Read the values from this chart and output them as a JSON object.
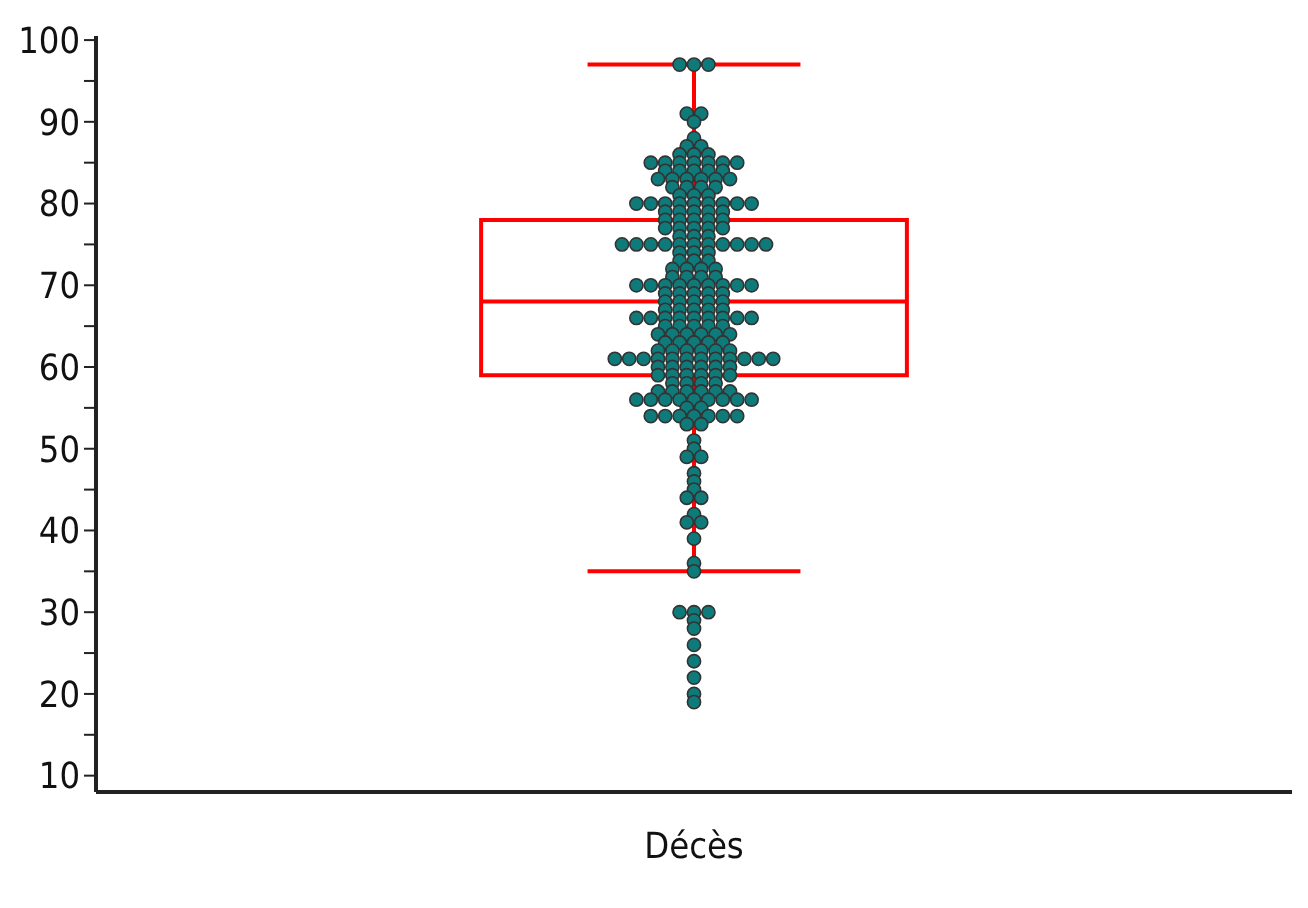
{
  "chart_data": {
    "type": "box",
    "categories": [
      "Décès"
    ],
    "boxes": [
      {
        "low": 35,
        "q1": 59,
        "median": 68,
        "q3": 78,
        "high": 97
      }
    ],
    "color": "#ff0000",
    "ylim": [
      8,
      100.5
    ],
    "yticks": [
      10,
      {
        "value": 15,
        "label": null
      },
      20,
      {
        "value": 25,
        "label": null
      },
      30,
      {
        "value": 35,
        "label": null
      },
      40,
      {
        "value": 45,
        "label": null
      },
      50,
      {
        "value": 55,
        "label": null
      },
      60,
      {
        "value": 65,
        "label": null
      },
      70,
      {
        "value": 75,
        "label": null
      },
      80,
      {
        "value": 85,
        "label": null
      },
      90,
      {
        "value": 95,
        "label": null
      },
      100
    ],
    "series": [
      {
        "type": "scatter",
        "color": "#0f7a7a",
        "marker": "circle",
        "x": [
          "Décès",
          "Décès",
          "Décès",
          "Décès",
          "Décès",
          "Décès",
          "Décès",
          "Décès",
          "Décès",
          "Décès",
          "Décès",
          "Décès",
          "Décès",
          "Décès",
          "Décès",
          "Décès",
          "Décès",
          "Décès",
          "Décès",
          "Décès",
          "Décès",
          "Décès",
          "Décès",
          "Décès",
          "Décès",
          "Décès",
          "Décès",
          "Décès",
          "Décès",
          "Décès",
          "Décès",
          "Décès",
          "Décès",
          "Décès",
          "Décès",
          "Décès",
          "Décès",
          "Décès",
          "Décès",
          "Décès",
          "Décès",
          "Décès",
          "Décès",
          "Décès",
          "Décès",
          "Décès",
          "Décès",
          "Décès",
          "Décès",
          "Décès",
          "Décès",
          "Décès",
          "Décès",
          "Décès",
          "Décès",
          "Décès",
          "Décès",
          "Décès",
          "Décès",
          "Décès",
          "Décès",
          "Décès",
          "Décès",
          "Décès",
          "Décès",
          "Décès",
          "Décès",
          "Décès",
          "Décès",
          "Décès",
          "Décès",
          "Décès",
          "Décès",
          "Décès",
          "Décès",
          "Décès",
          "Décès",
          "Décès",
          "Décès",
          "Décès",
          "Décès",
          "Décès",
          "Décès",
          "Décès",
          "Décès",
          "Décès",
          "Décès",
          "Décès",
          "Décès",
          "Décès",
          "Décès",
          "Décès",
          "Décès",
          "Décès",
          "Décès",
          "Décès",
          "Décès",
          "Décès",
          "Décès",
          "Décès",
          "Décès",
          "Décès",
          "Décès",
          "Décès",
          "Décès",
          "Décès",
          "Décès",
          "Décès",
          "Décès",
          "Décès",
          "Décès",
          "Décès",
          "Décès",
          "Décès",
          "Décès",
          "Décès",
          "Décès",
          "Décès",
          "Décès",
          "Décès",
          "Décès",
          "Décès",
          "Décès",
          "Décès",
          "Décès",
          "Décès",
          "Décès",
          "Décès",
          "Décès",
          "Décès",
          "Décès",
          "Décès",
          "Décès",
          "Décès",
          "Décès",
          "Décès",
          "Décès",
          "Décès",
          "Décès",
          "Décès",
          "Décès",
          "Décès",
          "Décès",
          "Décès",
          "Décès",
          "Décès",
          "Décès",
          "Décès",
          "Décès",
          "Décès",
          "Décès",
          "Décès",
          "Décès",
          "Décès",
          "Décès",
          "Décès",
          "Décès",
          "Décès",
          "Décès",
          "Décès",
          "Décès",
          "Décès",
          "Décès",
          "Décès",
          "Décès",
          "Décès",
          "Décès",
          "Décès",
          "Décès",
          "Décès",
          "Décès",
          "Décès",
          "Décès",
          "Décès",
          "Décès",
          "Décès",
          "Décès",
          "Décès",
          "Décès",
          "Décès",
          "Décès",
          "Décès",
          "Décès",
          "Décès",
          "Décès",
          "Décès",
          "Décès",
          "Décès",
          "Décès",
          "Décès",
          "Décès",
          "Décès",
          "Décès",
          "Décès",
          "Décès",
          "Décès",
          "Décès",
          "Décès",
          "Décès",
          "Décès",
          "Décès",
          "Décès",
          "Décès",
          "Décès",
          "Décès",
          "Décès",
          "Décès",
          "Décès",
          "Décès",
          "Décès",
          "Décès",
          "Décès",
          "Décès",
          "Décès",
          "Décès",
          "Décès",
          "Décès",
          "Décès",
          "Décès",
          "Décès",
          "Décès",
          "Décès",
          "Décès"
        ],
        "values": [
          97,
          97,
          97,
          91,
          91,
          90,
          88,
          87,
          87,
          86,
          86,
          86,
          85,
          85,
          85,
          85,
          85,
          85,
          85,
          84,
          84,
          84,
          84,
          84,
          83,
          83,
          83,
          83,
          83,
          83,
          82,
          82,
          82,
          82,
          81,
          81,
          81,
          80,
          80,
          80,
          80,
          80,
          80,
          80,
          80,
          80,
          79,
          79,
          79,
          79,
          79,
          78,
          78,
          78,
          78,
          78,
          77,
          77,
          77,
          77,
          77,
          76,
          76,
          76,
          75,
          75,
          75,
          75,
          75,
          75,
          75,
          75,
          75,
          75,
          75,
          74,
          74,
          74,
          73,
          73,
          73,
          72,
          72,
          72,
          72,
          71,
          71,
          71,
          71,
          70,
          70,
          70,
          70,
          70,
          70,
          70,
          70,
          70,
          69,
          69,
          69,
          69,
          69,
          68,
          68,
          68,
          68,
          68,
          67,
          67,
          67,
          67,
          67,
          66,
          66,
          66,
          66,
          66,
          66,
          66,
          66,
          66,
          65,
          65,
          65,
          65,
          65,
          64,
          64,
          64,
          64,
          64,
          64,
          63,
          63,
          63,
          63,
          63,
          62,
          62,
          62,
          62,
          62,
          62,
          61,
          61,
          61,
          61,
          61,
          61,
          61,
          61,
          61,
          61,
          61,
          61,
          60,
          60,
          60,
          60,
          60,
          60,
          59,
          59,
          59,
          59,
          59,
          59,
          58,
          58,
          58,
          58,
          57,
          57,
          57,
          57,
          57,
          57,
          56,
          56,
          56,
          56,
          56,
          56,
          56,
          56,
          56,
          55,
          55,
          54,
          54,
          54,
          54,
          54,
          54,
          54,
          53,
          53,
          51,
          50,
          49,
          49,
          47,
          46,
          45,
          44,
          44,
          42,
          41,
          41,
          39,
          36,
          35,
          30,
          30,
          30,
          29,
          28,
          26,
          24,
          22,
          20,
          19
        ]
      }
    ]
  }
}
